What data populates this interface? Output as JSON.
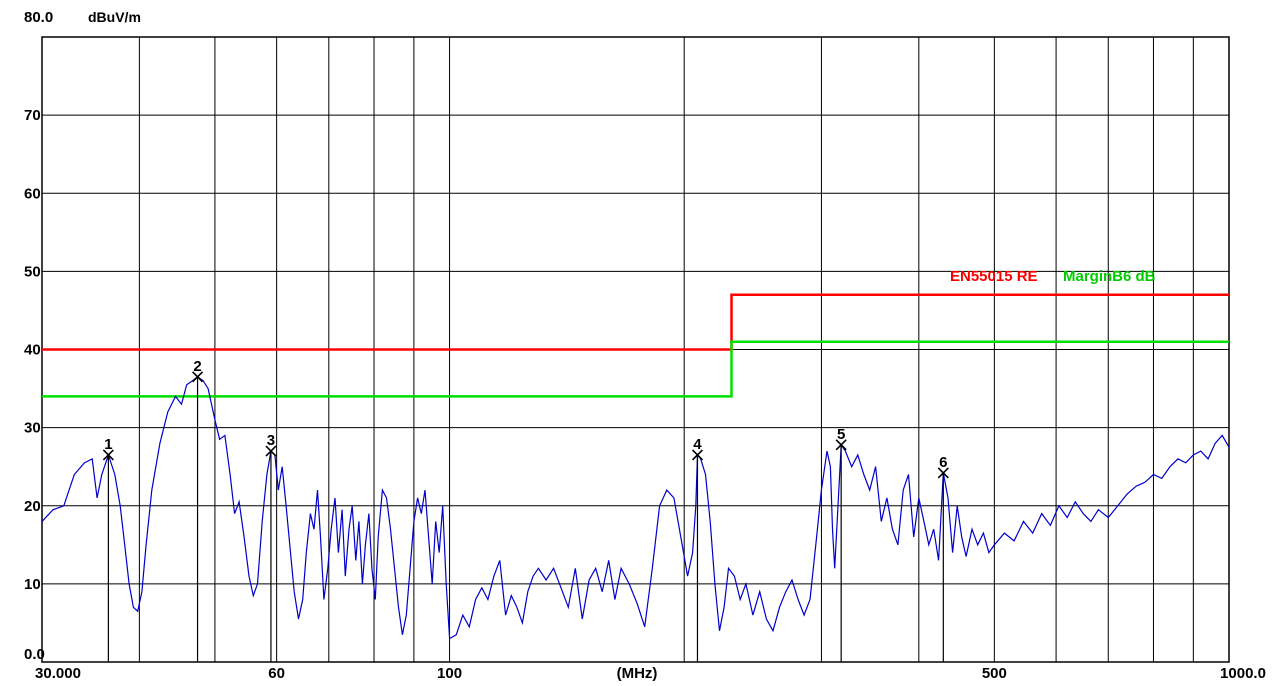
{
  "chart_data": {
    "type": "line",
    "ylabel": "dBuV/m",
    "xlabel": "(MHz)",
    "x_scale": "log",
    "xlim": [
      30,
      1000
    ],
    "ylim": [
      0,
      80
    ],
    "grid": true,
    "y_ticks": [
      {
        "value": 80,
        "label": "80.0"
      },
      {
        "value": 70,
        "label": "70"
      },
      {
        "value": 60,
        "label": "60"
      },
      {
        "value": 50,
        "label": "50"
      },
      {
        "value": 40,
        "label": "40"
      },
      {
        "value": 30,
        "label": "30"
      },
      {
        "value": 20,
        "label": "20"
      },
      {
        "value": 10,
        "label": "10"
      },
      {
        "value": 0,
        "label": "0.0"
      }
    ],
    "x_ticks": [
      {
        "value": 30,
        "label": "30.000"
      },
      {
        "value": 60,
        "label": "60"
      },
      {
        "value": 100,
        "label": "100"
      },
      {
        "value": 500,
        "label": "500"
      },
      {
        "value": 1000,
        "label": "1000.0"
      }
    ],
    "x_grid": [
      40,
      50,
      60,
      70,
      80,
      90,
      100,
      200,
      300,
      400,
      500,
      600,
      700,
      800,
      900
    ],
    "limits": [
      {
        "name": "EN55015 RE Class B",
        "color": "#ff0000",
        "points": [
          [
            30,
            40
          ],
          [
            230,
            40
          ],
          [
            230,
            47
          ],
          [
            1000,
            47
          ]
        ]
      },
      {
        "name": "Margin -6 dB",
        "color": "#00e000",
        "points": [
          [
            30,
            34
          ],
          [
            230,
            34
          ],
          [
            230,
            41
          ],
          [
            1000,
            41
          ]
        ]
      }
    ],
    "markers": [
      {
        "label": "1",
        "x": 36.5,
        "y": 26.5
      },
      {
        "label": "2",
        "x": 47.5,
        "y": 36.5
      },
      {
        "label": "3",
        "x": 59.0,
        "y": 27.0
      },
      {
        "label": "4",
        "x": 208.0,
        "y": 26.5
      },
      {
        "label": "5",
        "x": 318.0,
        "y": 27.8
      },
      {
        "label": "6",
        "x": 430.0,
        "y": 24.2
      }
    ],
    "series": [
      {
        "color": "#0000cc",
        "points": [
          [
            30.0,
            18.0
          ],
          [
            31.0,
            19.5
          ],
          [
            32.0,
            20.0
          ],
          [
            32.5,
            22.0
          ],
          [
            33.0,
            24.0
          ],
          [
            34.0,
            25.5
          ],
          [
            34.8,
            26.0
          ],
          [
            35.3,
            21.0
          ],
          [
            35.8,
            24.0
          ],
          [
            36.5,
            26.5
          ],
          [
            37.2,
            24.0
          ],
          [
            37.8,
            20.0
          ],
          [
            38.3,
            15.0
          ],
          [
            38.8,
            10.0
          ],
          [
            39.3,
            7.0
          ],
          [
            39.8,
            6.5
          ],
          [
            40.3,
            9.0
          ],
          [
            40.8,
            15.0
          ],
          [
            41.5,
            22.0
          ],
          [
            42.5,
            28.0
          ],
          [
            43.5,
            32.0
          ],
          [
            44.5,
            34.0
          ],
          [
            45.3,
            33.0
          ],
          [
            46.0,
            35.5
          ],
          [
            46.8,
            36.0
          ],
          [
            47.5,
            36.5
          ],
          [
            48.3,
            36.0
          ],
          [
            49.0,
            35.0
          ],
          [
            50.0,
            31.0
          ],
          [
            50.7,
            28.5
          ],
          [
            51.5,
            29.0
          ],
          [
            52.3,
            24.0
          ],
          [
            53.0,
            19.0
          ],
          [
            53.7,
            20.5
          ],
          [
            54.5,
            16.0
          ],
          [
            55.3,
            11.0
          ],
          [
            56.0,
            8.5
          ],
          [
            56.7,
            10.0
          ],
          [
            57.5,
            18.0
          ],
          [
            58.3,
            24.0
          ],
          [
            59.0,
            27.0
          ],
          [
            59.7,
            26.5
          ],
          [
            60.3,
            22.0
          ],
          [
            61.0,
            25.0
          ],
          [
            61.7,
            20.0
          ],
          [
            62.5,
            14.0
          ],
          [
            63.2,
            9.0
          ],
          [
            64.0,
            5.5
          ],
          [
            64.8,
            8.0
          ],
          [
            65.5,
            14.0
          ],
          [
            66.3,
            19.0
          ],
          [
            67.0,
            17.0
          ],
          [
            67.7,
            22.0
          ],
          [
            68.3,
            16.0
          ],
          [
            69.0,
            8.0
          ],
          [
            69.8,
            12.0
          ],
          [
            70.5,
            17.0
          ],
          [
            71.3,
            21.0
          ],
          [
            72.0,
            14.0
          ],
          [
            72.8,
            19.5
          ],
          [
            73.5,
            11.0
          ],
          [
            74.3,
            17.0
          ],
          [
            75.0,
            20.0
          ],
          [
            75.8,
            13.0
          ],
          [
            76.5,
            18.0
          ],
          [
            77.3,
            10.0
          ],
          [
            78.0,
            15.0
          ],
          [
            78.8,
            19.0
          ],
          [
            79.5,
            12.0
          ],
          [
            80.3,
            8.0
          ],
          [
            81.0,
            16.0
          ],
          [
            82.0,
            22.0
          ],
          [
            83.0,
            21.0
          ],
          [
            84.0,
            17.0
          ],
          [
            85.0,
            12.0
          ],
          [
            86.0,
            7.0
          ],
          [
            87.0,
            3.5
          ],
          [
            88.0,
            6.0
          ],
          [
            89.0,
            12.0
          ],
          [
            90.0,
            18.0
          ],
          [
            91.0,
            21.0
          ],
          [
            92.0,
            19.0
          ],
          [
            93.0,
            22.0
          ],
          [
            94.0,
            16.0
          ],
          [
            95.0,
            10.0
          ],
          [
            96.0,
            18.0
          ],
          [
            97.0,
            14.0
          ],
          [
            98.0,
            20.0
          ],
          [
            99.0,
            10.0
          ],
          [
            100.0,
            3.0
          ],
          [
            102.0,
            3.5
          ],
          [
            104.0,
            6.0
          ],
          [
            106.0,
            4.5
          ],
          [
            108.0,
            8.0
          ],
          [
            110.0,
            9.5
          ],
          [
            112.0,
            8.0
          ],
          [
            114.0,
            11.0
          ],
          [
            116.0,
            13.0
          ],
          [
            118.0,
            6.0
          ],
          [
            120.0,
            8.5
          ],
          [
            122.0,
            7.0
          ],
          [
            124.0,
            5.0
          ],
          [
            126.0,
            9.0
          ],
          [
            128.0,
            11.0
          ],
          [
            130.0,
            12.0
          ],
          [
            133.0,
            10.5
          ],
          [
            136.0,
            12.0
          ],
          [
            139.0,
            9.5
          ],
          [
            142.0,
            7.0
          ],
          [
            145.0,
            12.0
          ],
          [
            148.0,
            5.5
          ],
          [
            151.0,
            10.5
          ],
          [
            154.0,
            12.0
          ],
          [
            157.0,
            9.0
          ],
          [
            160.0,
            13.0
          ],
          [
            163.0,
            8.0
          ],
          [
            166.0,
            12.0
          ],
          [
            170.0,
            10.0
          ],
          [
            174.0,
            7.5
          ],
          [
            178.0,
            4.5
          ],
          [
            182.0,
            12.0
          ],
          [
            186.0,
            20.0
          ],
          [
            190.0,
            22.0
          ],
          [
            194.0,
            21.0
          ],
          [
            198.0,
            16.0
          ],
          [
            202.0,
            11.0
          ],
          [
            205.0,
            14.0
          ],
          [
            207.0,
            20.0
          ],
          [
            208.0,
            26.5
          ],
          [
            210.0,
            26.0
          ],
          [
            213.0,
            24.0
          ],
          [
            216.0,
            18.0
          ],
          [
            219.0,
            10.0
          ],
          [
            222.0,
            4.0
          ],
          [
            225.0,
            7.0
          ],
          [
            228.0,
            12.0
          ],
          [
            232.0,
            11.0
          ],
          [
            236.0,
            8.0
          ],
          [
            240.0,
            10.0
          ],
          [
            245.0,
            6.0
          ],
          [
            250.0,
            9.0
          ],
          [
            255.0,
            5.5
          ],
          [
            260.0,
            4.0
          ],
          [
            265.0,
            7.0
          ],
          [
            270.0,
            9.0
          ],
          [
            275.0,
            10.5
          ],
          [
            280.0,
            8.0
          ],
          [
            285.0,
            6.0
          ],
          [
            290.0,
            8.0
          ],
          [
            295.0,
            15.0
          ],
          [
            300.0,
            22.0
          ],
          [
            305.0,
            27.0
          ],
          [
            308.0,
            25.0
          ],
          [
            310.0,
            17.0
          ],
          [
            312.0,
            12.0
          ],
          [
            315.0,
            20.0
          ],
          [
            318.0,
            27.8
          ],
          [
            322.0,
            27.0
          ],
          [
            328.0,
            25.0
          ],
          [
            334.0,
            26.5
          ],
          [
            340.0,
            24.0
          ],
          [
            346.0,
            22.0
          ],
          [
            352.0,
            25.0
          ],
          [
            358.0,
            18.0
          ],
          [
            364.0,
            21.0
          ],
          [
            370.0,
            17.0
          ],
          [
            376.0,
            15.0
          ],
          [
            382.0,
            22.0
          ],
          [
            388.0,
            24.0
          ],
          [
            394.0,
            16.0
          ],
          [
            400.0,
            21.0
          ],
          [
            406.0,
            18.0
          ],
          [
            412.0,
            15.0
          ],
          [
            418.0,
            17.0
          ],
          [
            424.0,
            13.0
          ],
          [
            430.0,
            24.2
          ],
          [
            436.0,
            21.0
          ],
          [
            442.0,
            14.0
          ],
          [
            448.0,
            20.0
          ],
          [
            454.0,
            16.0
          ],
          [
            460.0,
            13.5
          ],
          [
            468.0,
            17.0
          ],
          [
            476.0,
            15.0
          ],
          [
            484.0,
            16.5
          ],
          [
            492.0,
            14.0
          ],
          [
            500.0,
            15.0
          ],
          [
            515.0,
            16.5
          ],
          [
            530.0,
            15.5
          ],
          [
            545.0,
            18.0
          ],
          [
            560.0,
            16.5
          ],
          [
            575.0,
            19.0
          ],
          [
            590.0,
            17.5
          ],
          [
            605.0,
            20.0
          ],
          [
            620.0,
            18.5
          ],
          [
            635.0,
            20.5
          ],
          [
            650.0,
            19.0
          ],
          [
            665.0,
            18.0
          ],
          [
            680.0,
            19.5
          ],
          [
            700.0,
            18.5
          ],
          [
            720.0,
            20.0
          ],
          [
            740.0,
            21.5
          ],
          [
            760.0,
            22.5
          ],
          [
            780.0,
            23.0
          ],
          [
            800.0,
            24.0
          ],
          [
            820.0,
            23.5
          ],
          [
            840.0,
            25.0
          ],
          [
            860.0,
            26.0
          ],
          [
            880.0,
            25.5
          ],
          [
            900.0,
            26.5
          ],
          [
            920.0,
            27.0
          ],
          [
            940.0,
            26.0
          ],
          [
            960.0,
            28.0
          ],
          [
            980.0,
            29.0
          ],
          [
            1000.0,
            27.5
          ]
        ]
      }
    ],
    "legend_text": "EN55015 RE",
    "legend_text_overlap": "MarginB6 dB"
  }
}
